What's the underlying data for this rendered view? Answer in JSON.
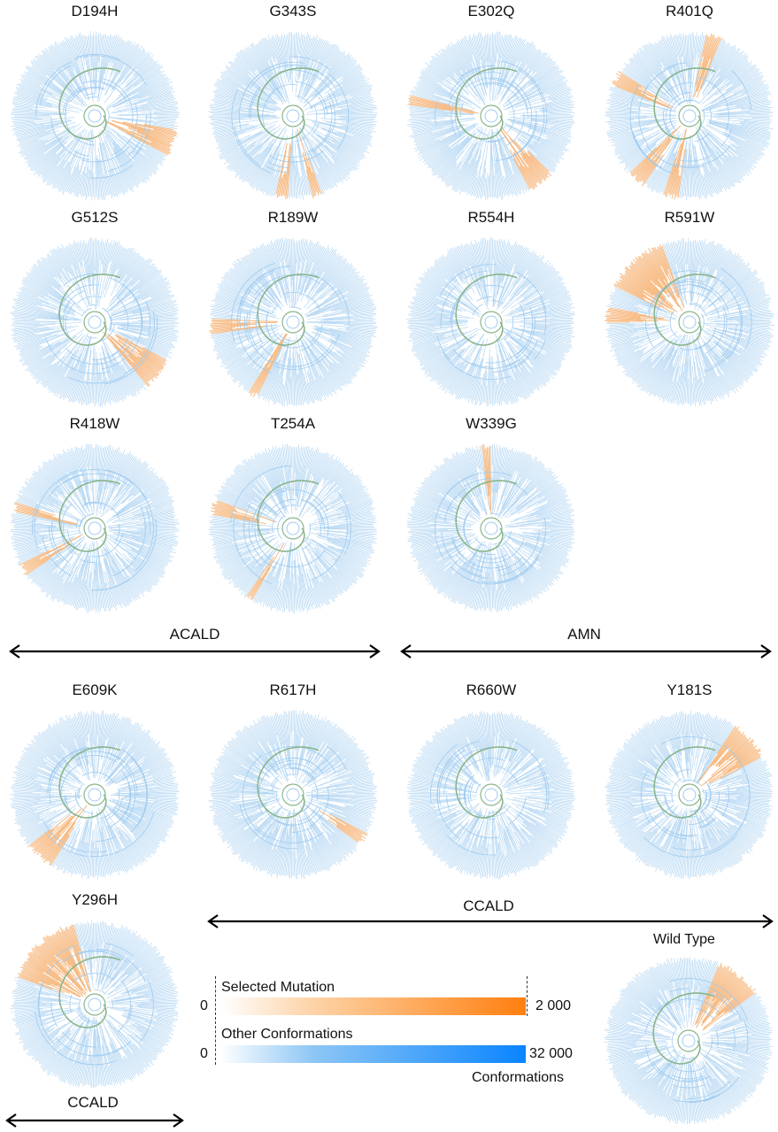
{
  "colors": {
    "tree_blue": "#9fcbef",
    "tree_green": "#8ab58c",
    "highlight_orange": "#f7b880",
    "bar_orange": "#ff7f0e",
    "bar_blue": "#0a84ff"
  },
  "panels": [
    {
      "id": "d194h",
      "title": "D194H",
      "highlight": [
        [
          100,
          118
        ]
      ]
    },
    {
      "id": "g343s",
      "title": "G343S",
      "highlight": [
        [
          184,
          192
        ],
        [
          160,
          166
        ]
      ]
    },
    {
      "id": "e302q",
      "title": "E302Q",
      "highlight": [
        [
          134,
          152
        ],
        [
          278,
          284
        ]
      ]
    },
    {
      "id": "r401q",
      "title": "R401Q",
      "highlight": [
        [
          188,
          198
        ],
        [
          214,
          226
        ],
        [
          12,
          22
        ],
        [
          292,
          302
        ]
      ]
    },
    {
      "id": "g512s",
      "title": "G512S",
      "highlight": [
        [
          118,
          140
        ]
      ]
    },
    {
      "id": "r189w",
      "title": "R189W",
      "highlight": [
        [
          262,
          272
        ],
        [
          206,
          212
        ]
      ]
    },
    {
      "id": "r554h",
      "title": "R554H",
      "highlight": []
    },
    {
      "id": "r591w",
      "title": "R591W",
      "highlight": [
        [
          296,
          340
        ],
        [
          270,
          280
        ]
      ]
    },
    {
      "id": "r418w",
      "title": "R418W",
      "highlight": [
        [
          236,
          244
        ],
        [
          282,
          288
        ]
      ]
    },
    {
      "id": "t254a",
      "title": "T254A",
      "highlight": [
        [
          280,
          290
        ],
        [
          210,
          214
        ]
      ]
    },
    {
      "id": "w339g",
      "title": "W339G",
      "highlight": [
        [
          354,
          376
        ]
      ]
    },
    {
      "id": "e609k",
      "title": "E609K",
      "highlight": [
        [
          212,
          232
        ]
      ]
    },
    {
      "id": "r617h",
      "title": "R617H",
      "highlight": [
        [
          118,
          126
        ]
      ]
    },
    {
      "id": "r660w",
      "title": "R660W",
      "highlight": []
    },
    {
      "id": "y181s",
      "title": "Y181S",
      "highlight": [
        [
          34,
          62
        ]
      ]
    },
    {
      "id": "y296h",
      "title": "Y296H",
      "highlight": [
        [
          290,
          345
        ]
      ]
    }
  ],
  "wild_type": {
    "title": "Wild Type",
    "highlight": [
      [
        22,
        54
      ]
    ]
  },
  "groups": [
    {
      "id": "acald",
      "label": "ACALD"
    },
    {
      "id": "amn",
      "label": "AMN"
    },
    {
      "id": "ccald-main",
      "label": "CCALD"
    },
    {
      "id": "ccald-left",
      "label": "CCALD"
    }
  ],
  "legend": {
    "selected_label": "Selected Mutation",
    "selected_min": "0",
    "selected_max": "2 000",
    "other_label": "Other Conformations",
    "other_min": "0",
    "other_max": "32 000",
    "unit": "Conformations"
  }
}
